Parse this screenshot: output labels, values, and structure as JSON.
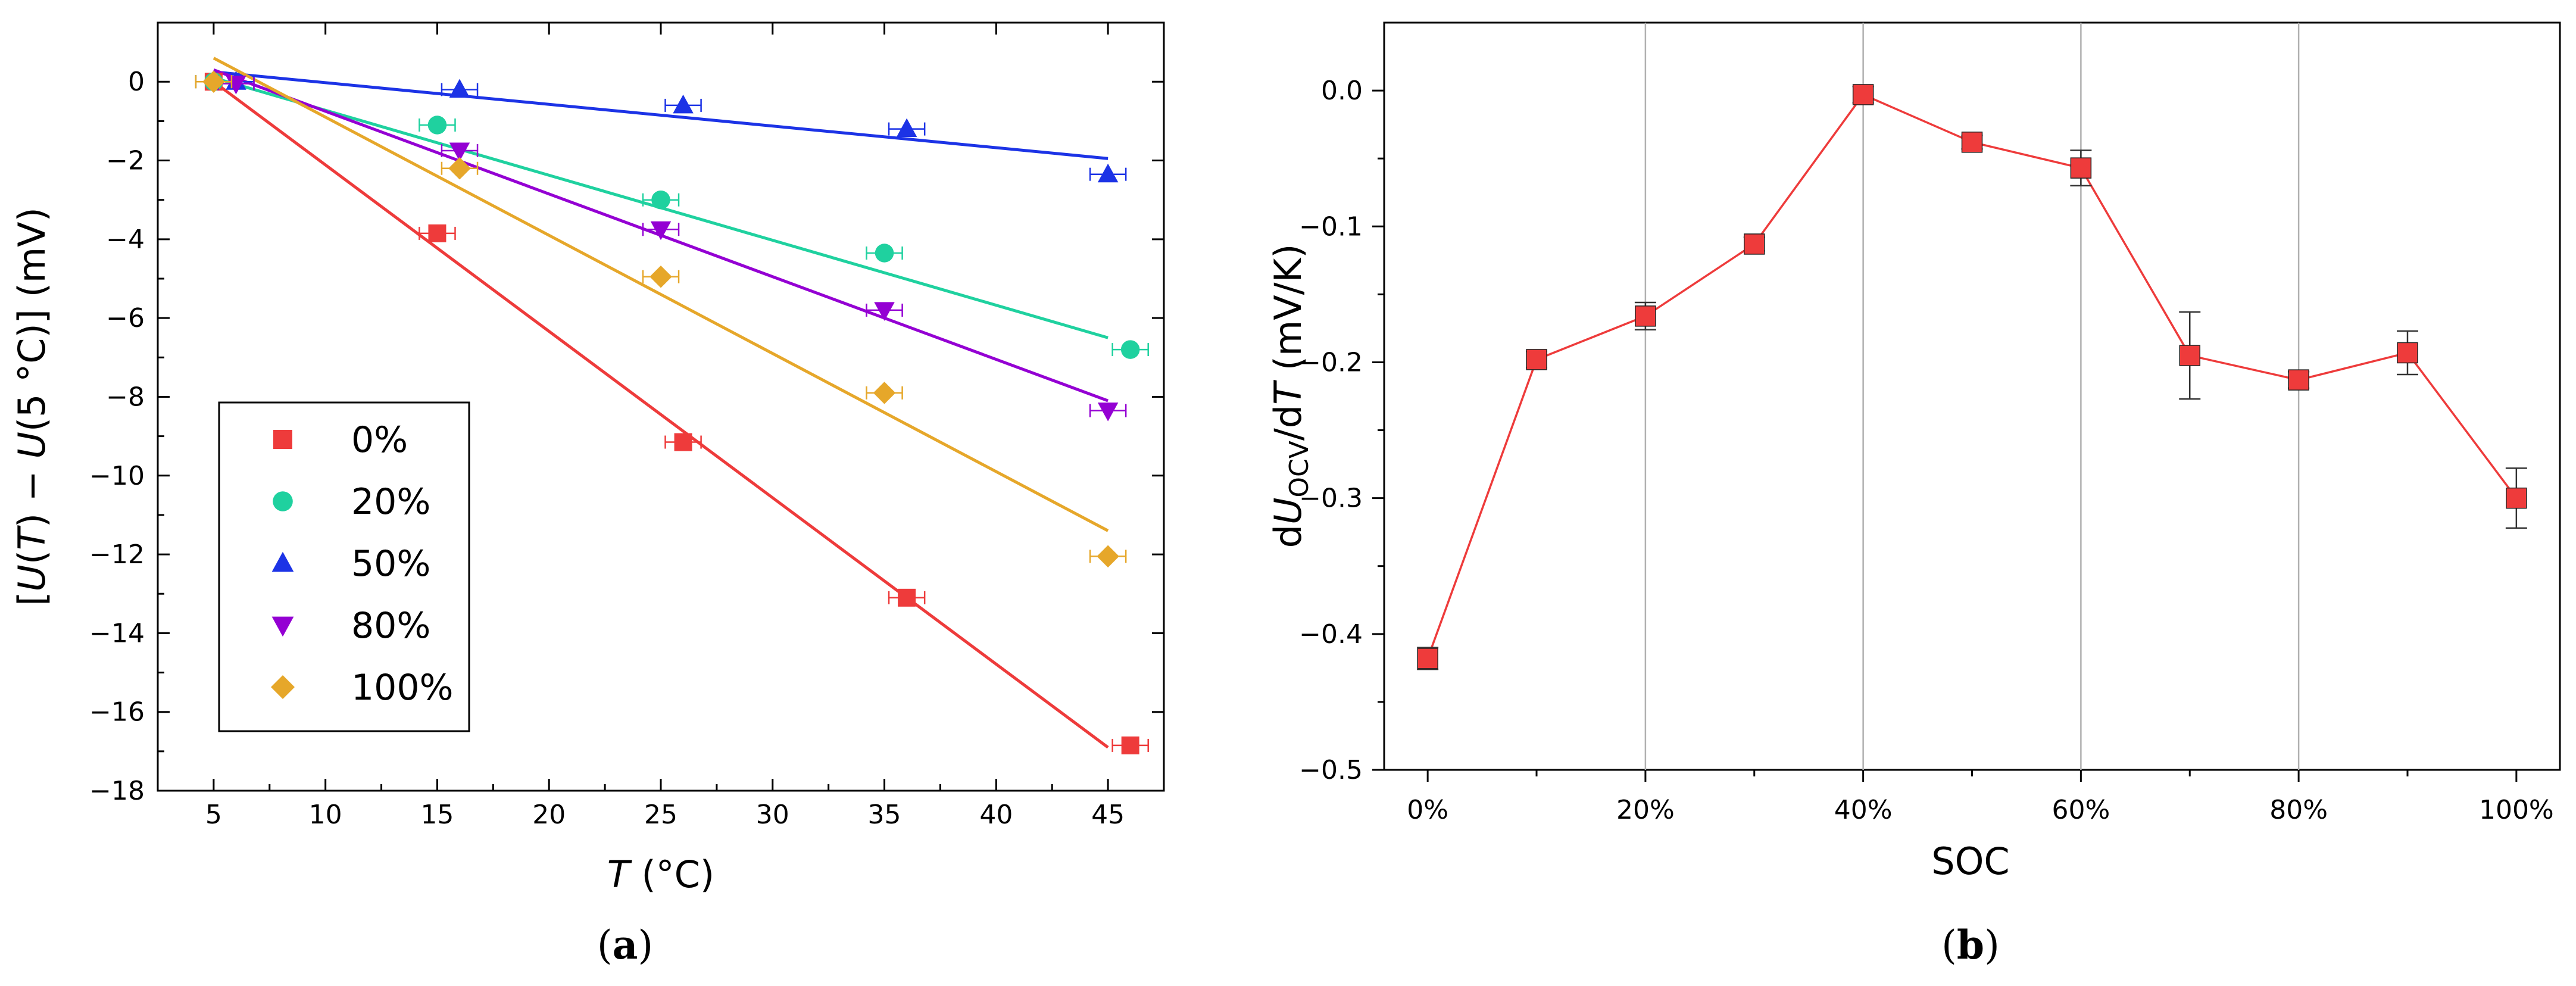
{
  "chart_data": [
    {
      "type": "scatter",
      "panel_label": {
        "open": "(",
        "letter": "a",
        "close": ")"
      },
      "xlabel": {
        "italic": "T",
        "rest": " (°C)"
      },
      "ylabel": {
        "p1": "[",
        "p2": "U",
        "p3": "(",
        "p4": "T",
        "p5": ") − ",
        "p6": "U",
        "p7": "(5 °C)] (mV)"
      },
      "xlim": [
        2.5,
        47.5
      ],
      "ylim": [
        -18,
        1.5
      ],
      "xticks": [
        5,
        10,
        15,
        20,
        25,
        30,
        35,
        40,
        45
      ],
      "yticks": [
        0,
        -2,
        -4,
        -6,
        -8,
        -10,
        -12,
        -14,
        -16,
        -18
      ],
      "tick_labels_x": [
        "5",
        "10",
        "15",
        "20",
        "25",
        "30",
        "35",
        "40",
        "45"
      ],
      "tick_labels_y": [
        "0",
        "−2",
        "−4",
        "−6",
        "−8",
        "−10",
        "−12",
        "−14",
        "−16",
        "−18"
      ],
      "x_error": 0.8,
      "legend_position": "bottom-left",
      "series": [
        {
          "name": "0%",
          "marker": "square",
          "color": "#ee3b3b",
          "x": [
            5,
            15,
            26,
            36,
            46
          ],
          "y": [
            0,
            -3.85,
            -9.15,
            -13.1,
            -16.85
          ],
          "fit": {
            "x": [
              5,
              45
            ],
            "y": [
              0,
              -16.9
            ]
          }
        },
        {
          "name": "20%",
          "marker": "circle",
          "color": "#1fd19f",
          "x": [
            5,
            15,
            25,
            35,
            46
          ],
          "y": [
            0,
            -1.1,
            -3.0,
            -4.35,
            -6.8
          ],
          "fit": {
            "x": [
              5,
              45
            ],
            "y": [
              0.1,
              -6.5
            ]
          }
        },
        {
          "name": "50%",
          "marker": "triangle-up",
          "color": "#1c33e6",
          "x": [
            6,
            16,
            26,
            36,
            45
          ],
          "y": [
            0,
            -0.2,
            -0.6,
            -1.2,
            -2.35
          ],
          "fit": {
            "x": [
              5,
              45
            ],
            "y": [
              0.25,
              -1.95
            ]
          }
        },
        {
          "name": "80%",
          "marker": "triangle-down",
          "color": "#9400d3",
          "x": [
            6,
            16,
            25,
            35,
            45
          ],
          "y": [
            -0.05,
            -1.75,
            -3.75,
            -5.8,
            -8.35
          ],
          "fit": {
            "x": [
              5,
              45
            ],
            "y": [
              0.3,
              -8.1
            ]
          }
        },
        {
          "name": "100%",
          "marker": "diamond",
          "color": "#e6a72a",
          "x": [
            5,
            16,
            25,
            35,
            45
          ],
          "y": [
            0,
            -2.2,
            -4.95,
            -7.9,
            -12.05
          ],
          "fit": {
            "x": [
              5,
              45
            ],
            "y": [
              0.6,
              -11.4
            ]
          }
        }
      ]
    },
    {
      "type": "line",
      "panel_label": {
        "open": "(",
        "letter": "b",
        "close": ")"
      },
      "xlabel": "SOC",
      "ylabel": {
        "d1": "d",
        "U": "U",
        "sub": "OCV",
        "slash": "/d",
        "T": "T",
        "unit": " (mV/K)"
      },
      "xlim": [
        -0.04,
        1.04
      ],
      "ylim": [
        -0.5,
        0.05
      ],
      "xticks": [
        0,
        0.2,
        0.4,
        0.6,
        0.8,
        1.0
      ],
      "tick_labels_x": [
        "0%",
        "20%",
        "40%",
        "60%",
        "80%",
        "100%"
      ],
      "yticks": [
        0.0,
        -0.1,
        -0.2,
        -0.3,
        -0.4,
        -0.5
      ],
      "tick_labels_y": [
        "0.0",
        "−0.1",
        "−0.2",
        "−0.3",
        "−0.4",
        "−0.5"
      ],
      "grid": "vertical",
      "color": "#ee3b3b",
      "x": [
        0,
        0.1,
        0.2,
        0.3,
        0.4,
        0.5,
        0.6,
        0.7,
        0.8,
        0.9,
        1.0
      ],
      "y": [
        -0.418,
        -0.198,
        -0.166,
        -0.113,
        -0.003,
        -0.038,
        -0.057,
        -0.195,
        -0.213,
        -0.193,
        -0.3
      ],
      "yerr": [
        0.008,
        0.006,
        0.01,
        0.005,
        0.006,
        0.005,
        0.013,
        0.032,
        0.006,
        0.016,
        0.022
      ]
    }
  ]
}
